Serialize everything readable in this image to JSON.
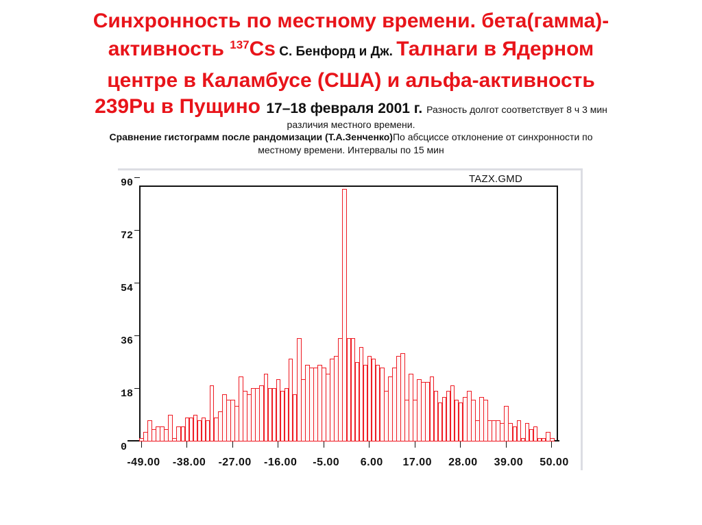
{
  "slide": {
    "title_line1": "Синхронность по местному времени. бета(гамма)-",
    "title_line2_a": "активность ",
    "title_line2_sup": "137",
    "title_line2_b": "Cs",
    "title_line2_c": " С. Бенфорд и Дж. ",
    "title_line2_d": "Талнаги в Ядерном",
    "title_line3": "центре в Каламбусе (США) и альфа-активность",
    "title_line4_a": "239Pu в Пущино ",
    "title_line4_b": "17–18 февраля 2001 г. ",
    "title_line4_c": "Разность долгот соответствует 8 ч 3 мин",
    "subtitle_line1": "различия местного времени.",
    "subtitle_line2_bold": "Сравнение гистограмм после рандомизации (Т.А.Зенченко)",
    "subtitle_line2_normal": "По абсциссе отклонение от синхронности по",
    "subtitle_line3": "местному времени. Интервалы по 15 мин"
  },
  "chart_data": {
    "type": "bar",
    "title": "TAZX.GMD",
    "xlabel": "",
    "ylabel": "",
    "ylim": [
      0,
      90
    ],
    "xlim": [
      -50,
      50
    ],
    "grid": false,
    "bar_color": "#ee1c24",
    "yticks": [
      "90",
      "72",
      "54",
      "36",
      "18",
      "0"
    ],
    "ytick_values": [
      90,
      72,
      54,
      36,
      18,
      0
    ],
    "xticks": [
      "-49.00",
      "-38.00",
      "-27.00",
      "-16.00",
      "-5.00",
      "6.00",
      "17.00",
      "28.00",
      "39.00",
      "50.00"
    ],
    "xtick_values": [
      -49,
      -38,
      -27,
      -16,
      -5,
      6,
      17,
      28,
      39,
      50
    ],
    "categories_start": -49,
    "categories_end": 50,
    "values": [
      1,
      3,
      7,
      4,
      5,
      5,
      4,
      9,
      1,
      5,
      5,
      8,
      8,
      9,
      7,
      8,
      7,
      19,
      8,
      10,
      16,
      14,
      14,
      12,
      22,
      17,
      16,
      18,
      18,
      19,
      23,
      18,
      18,
      21,
      17,
      18,
      28,
      16,
      35,
      21,
      26,
      25,
      25,
      26,
      25,
      23,
      28,
      29,
      35,
      86,
      35,
      35,
      27,
      32,
      26,
      29,
      28,
      26,
      25,
      17,
      22,
      25,
      29,
      30,
      14,
      23,
      14,
      21,
      20,
      20,
      22,
      17,
      13,
      15,
      17,
      19,
      14,
      13,
      15,
      17,
      14,
      7,
      15,
      14,
      7,
      7,
      7,
      6,
      12,
      6,
      5,
      7,
      1,
      6,
      4,
      5,
      1,
      1,
      3,
      1
    ]
  }
}
